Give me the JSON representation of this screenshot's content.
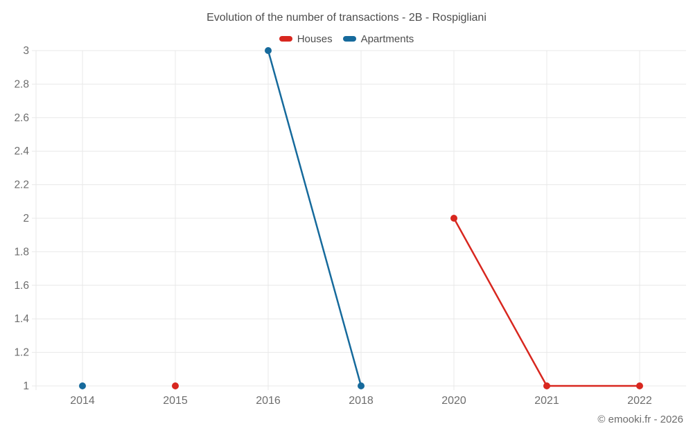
{
  "header": {
    "title": "Evolution of the number of transactions - 2B - Rospigliani"
  },
  "legend": {
    "items": [
      {
        "label": "Houses",
        "color": "#d8271f"
      },
      {
        "label": "Apartments",
        "color": "#166a9c"
      }
    ]
  },
  "footer": {
    "copyright": "© emooki.fr - 2026"
  },
  "colors": {
    "grid": "#e8e8e8",
    "axis_text": "#6d6d6d",
    "title_text": "#4d4d4d",
    "background": "#ffffff"
  },
  "chart_data": {
    "type": "line",
    "title": "Evolution of the number of transactions - 2B - Rospigliani",
    "categories": [
      "2014",
      "2015",
      "2016",
      "2018",
      "2020",
      "2021",
      "2022"
    ],
    "series": [
      {
        "name": "Houses",
        "color": "#d8271f",
        "values": [
          null,
          1,
          null,
          null,
          2,
          1,
          1
        ]
      },
      {
        "name": "Apartments",
        "color": "#166a9c",
        "values": [
          1,
          null,
          3,
          1,
          null,
          null,
          null
        ]
      }
    ],
    "xlabel": "",
    "ylabel": "",
    "ylim": [
      1,
      3
    ],
    "ytick_step": 0.2,
    "grid": true,
    "legend_position": "top",
    "point_radius": 5,
    "line_width": 2.5
  }
}
